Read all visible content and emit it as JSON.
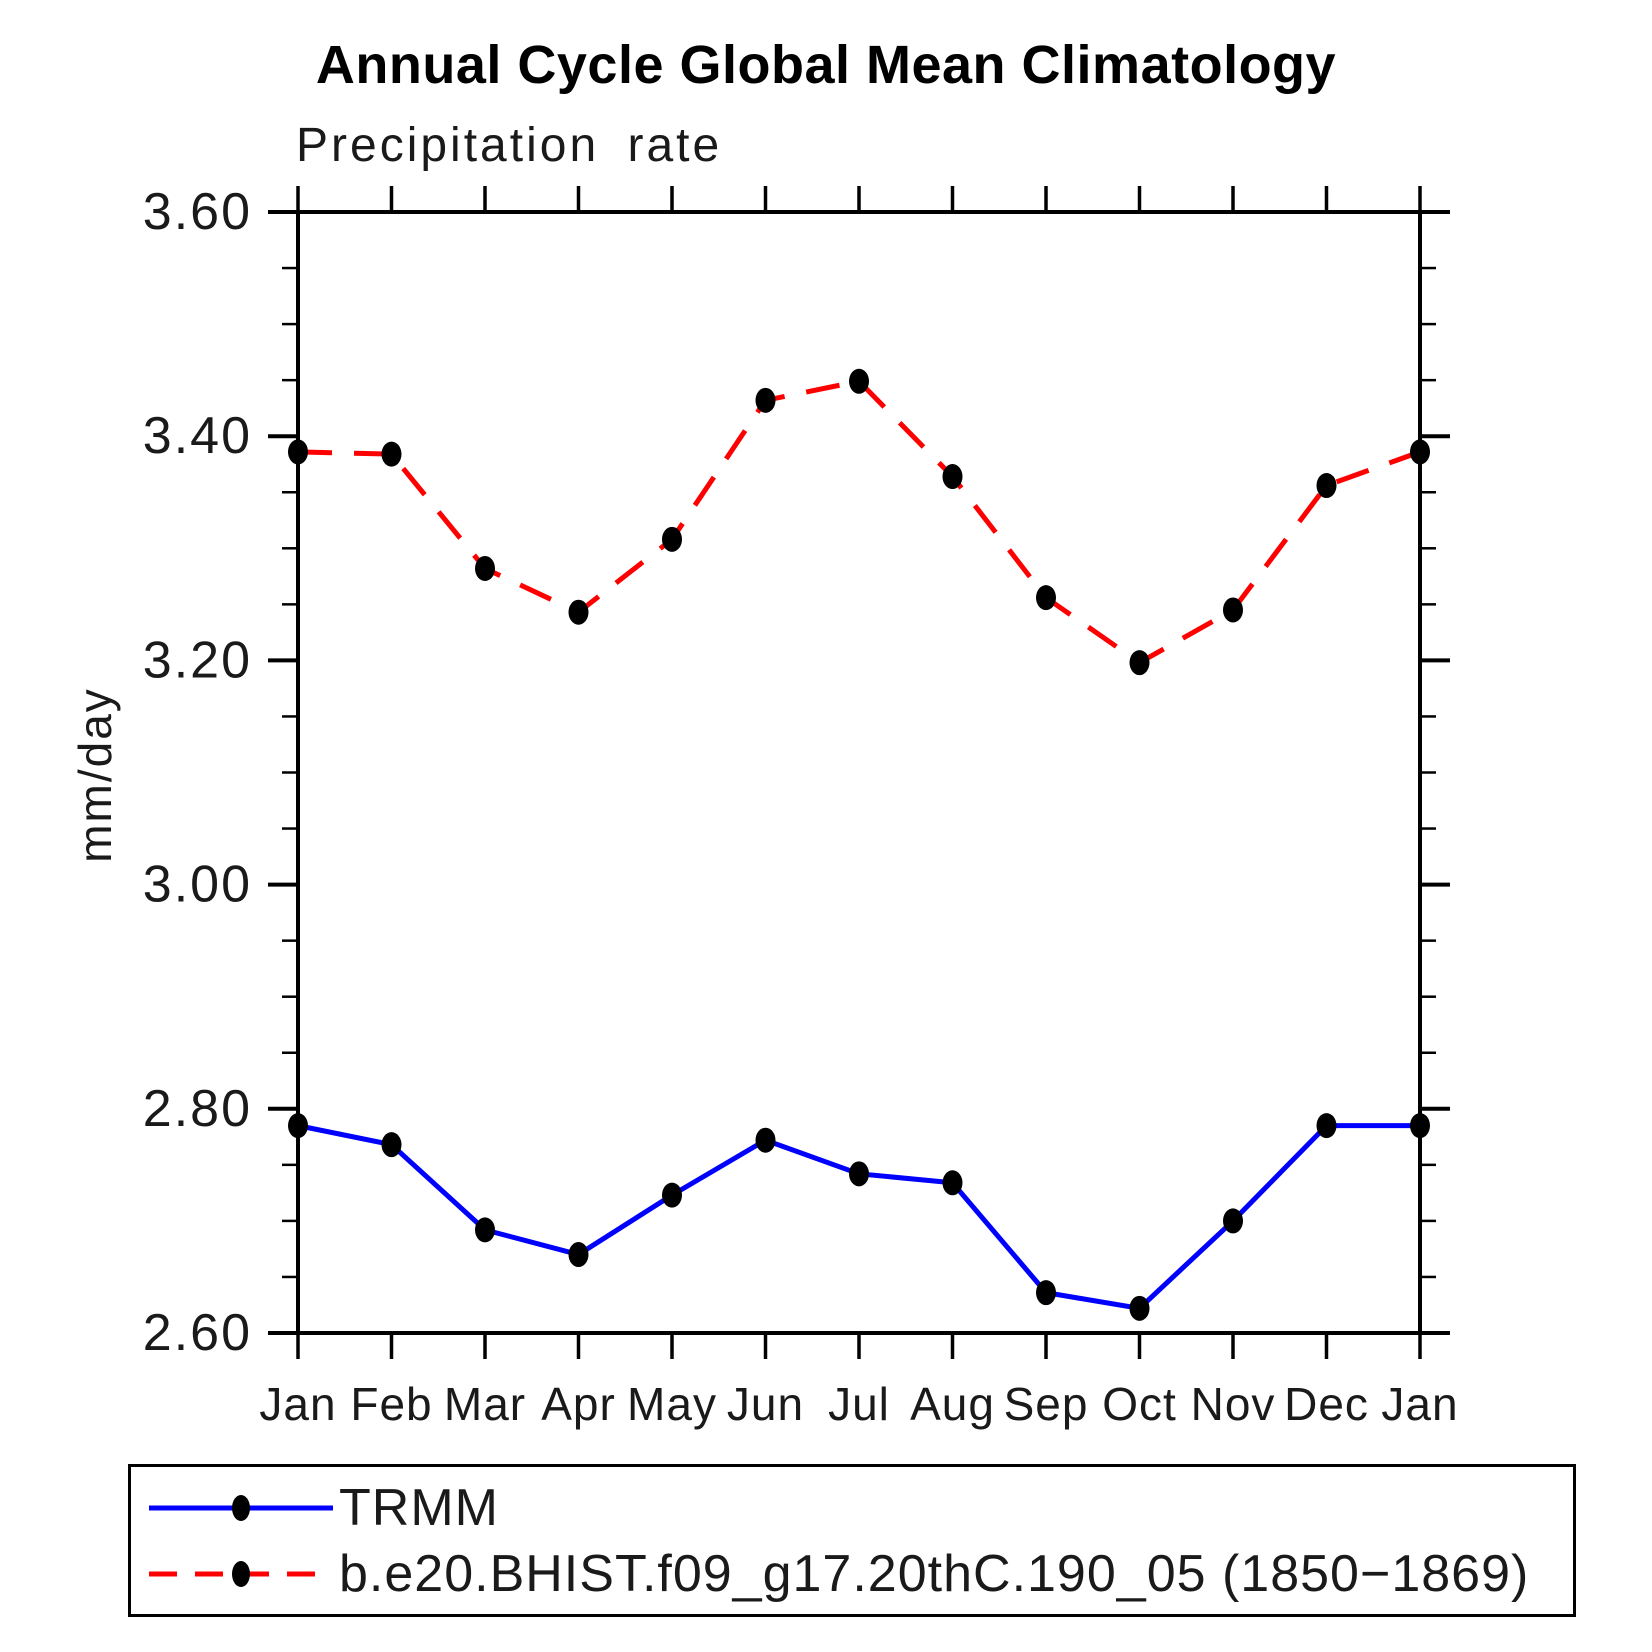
{
  "title": "Annual Cycle Global Mean Climatology",
  "subtitle": "Precipitation rate",
  "colors": {
    "background": "#ffffff",
    "axis": "#000000",
    "text": "#1a1a1a",
    "trmm_line": "#0000ff",
    "model_line": "#ff0000",
    "marker": "#000000"
  },
  "chart_data": {
    "type": "line",
    "title": "Annual Cycle Global Mean Climatology",
    "subtitle": "Precipitation rate",
    "xlabel": "",
    "ylabel": "mm/day",
    "categories": [
      "Jan",
      "Feb",
      "Mar",
      "Apr",
      "May",
      "Jun",
      "Jul",
      "Aug",
      "Sep",
      "Oct",
      "Nov",
      "Dec",
      "Jan"
    ],
    "ylim": [
      2.6,
      3.6
    ],
    "ytick_major": 0.2,
    "ytick_minor": 0.05,
    "ytick_labels": [
      "2.60",
      "2.80",
      "3.00",
      "3.20",
      "3.40",
      "3.60"
    ],
    "grid": false,
    "legend_position": "bottom",
    "series": [
      {
        "name": "TRMM",
        "color": "#0000ff",
        "style": "solid",
        "marker": "filled-circle",
        "marker_color": "#000000",
        "values": [
          2.785,
          2.768,
          2.692,
          2.67,
          2.723,
          2.772,
          2.742,
          2.734,
          2.636,
          2.622,
          2.7,
          2.785,
          2.785
        ]
      },
      {
        "name": "b.e20.BHIST.f09_g17.20thC.190_05 (1850−1869)",
        "color": "#ff0000",
        "style": "dashed",
        "marker": "filled-circle",
        "marker_color": "#000000",
        "values": [
          3.386,
          3.384,
          3.282,
          3.243,
          3.308,
          3.432,
          3.449,
          3.364,
          3.256,
          3.198,
          3.245,
          3.356,
          3.386
        ]
      }
    ]
  }
}
